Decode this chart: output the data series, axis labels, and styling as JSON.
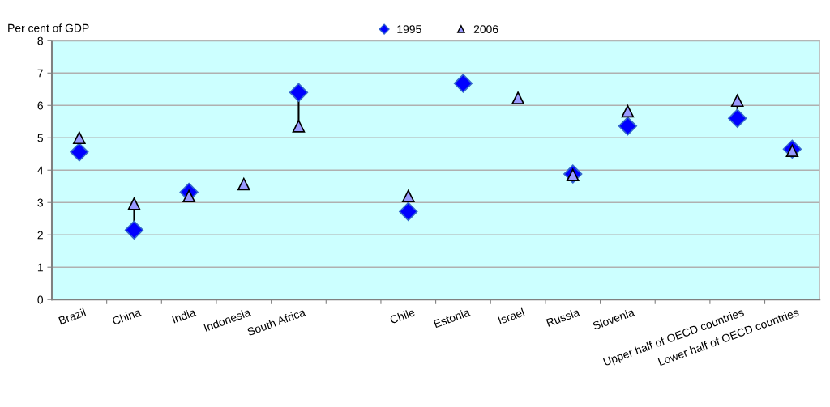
{
  "chart_data": {
    "type": "scatter",
    "ylabel": "Per cent of GDP",
    "categories": [
      "Brazil",
      "China",
      "India",
      "Indonesia",
      "South Africa",
      null,
      "Chile",
      "Estonia",
      "Israel",
      "Russia",
      "Slovenia",
      null,
      "Upper half of OECD countries",
      "Lower half of OECD countries"
    ],
    "series": [
      {
        "name": "1995",
        "color": "#0000ff",
        "marker": "diamond",
        "values": [
          4.56,
          2.15,
          3.32,
          null,
          6.4,
          null,
          2.72,
          6.68,
          null,
          3.88,
          5.36,
          null,
          5.6,
          4.65
        ]
      },
      {
        "name": "2006",
        "color": "#9999ff",
        "marker": "triangle",
        "values": [
          5.0,
          2.96,
          3.2,
          3.57,
          5.36,
          null,
          3.2,
          null,
          6.23,
          3.85,
          5.82,
          null,
          6.15,
          4.6
        ]
      }
    ],
    "ylim": [
      0,
      8
    ],
    "yticks": [
      0,
      1,
      2,
      3,
      4,
      5,
      6,
      7,
      8
    ],
    "grid": "y",
    "legend": "top"
  }
}
